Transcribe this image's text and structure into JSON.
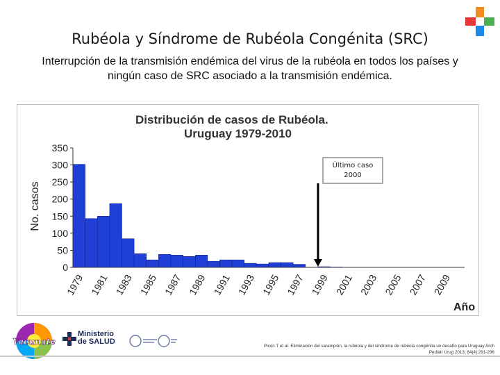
{
  "slide": {
    "title": "Rubéola y Síndrome de Rubéola Congénita (SRC)",
    "subtitle_line1": "Interrupción de la transmisión endémica del virus de la rubéola en todos los países y",
    "subtitle_line2": "ningún caso de SRC asociado a la transmisión endémica."
  },
  "chart_data": {
    "type": "bar",
    "title": "Distribución de casos de Rubéola.",
    "subtitle": "Uruguay 1979-2010",
    "xlabel": "Año",
    "ylabel": "No. casos",
    "ylim": [
      0,
      350
    ],
    "yticks": [
      0,
      50,
      100,
      150,
      200,
      250,
      300,
      350
    ],
    "xtick_labels": [
      "1979",
      "1981",
      "1983",
      "1985",
      "1987",
      "1989",
      "1991",
      "1993",
      "1995",
      "1997",
      "1999",
      "2001",
      "2003",
      "2005",
      "2007",
      "2009"
    ],
    "categories": [
      "1979",
      "1980",
      "1981",
      "1982",
      "1983",
      "1984",
      "1985",
      "1986",
      "1987",
      "1988",
      "1989",
      "1990",
      "1991",
      "1992",
      "1993",
      "1994",
      "1995",
      "1996",
      "1997",
      "1998",
      "1999",
      "2000",
      "2001",
      "2002",
      "2003",
      "2004",
      "2005",
      "2006",
      "2007",
      "2008",
      "2009",
      "2010"
    ],
    "values": [
      302,
      143,
      150,
      187,
      84,
      40,
      22,
      38,
      36,
      32,
      36,
      18,
      22,
      22,
      12,
      10,
      14,
      14,
      9,
      0,
      2,
      1,
      0,
      0,
      0,
      0,
      0,
      0,
      0,
      0,
      0,
      0
    ],
    "bar_color": "#1f3fd6",
    "annotation": {
      "line1": "Último caso",
      "line2": "2000",
      "category": "2000"
    },
    "grid": false
  },
  "footer": {
    "vacunate_logo": "Vacunate",
    "ministerio_line1": "Ministerio",
    "ministerio_line2": "de SALUD",
    "citation_line1": "Picón T et al. Eliminación del sarampión, la rubéola y del síndrome de rubéola congénita un desafío para Uruguay Arch",
    "citation_line2": "Pediatr Urug 2013; 84(4):291-296"
  },
  "colors": {
    "plus_orange": "#f28c1e",
    "plus_green": "#4caf50",
    "plus_red": "#e53935",
    "plus_blue": "#1e88e5"
  }
}
